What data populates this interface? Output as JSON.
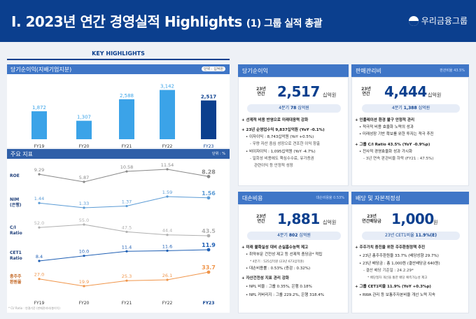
{
  "header": {
    "title": "I. 2023년 연간 경영실적 Highlights",
    "subtitle": "(1) 그룹 실적 총괄",
    "logo": "우리금융그룹"
  },
  "key_highlights": "KEY HIGHLIGHTS",
  "net_income_chart": {
    "title": "당기순이익(지배기업지분)",
    "unit": "단위 : 십억원",
    "chart_data": {
      "type": "bar",
      "categories": [
        "FY19",
        "FY20",
        "FY21",
        "FY22",
        "FY23"
      ],
      "values": [
        1872,
        1307,
        2588,
        3142,
        2517
      ],
      "value_labels": [
        "1,872",
        "1,307",
        "2,588",
        "3,142",
        "2,517"
      ],
      "ylim": [
        0,
        3500
      ]
    }
  },
  "ratios_chart": {
    "title": "주요 지표",
    "unit": "단위 : %",
    "footnote": "* CI/ Ratio : 연결기준 (판매관리비/총이익)",
    "chart_data": {
      "type": "line",
      "categories": [
        "FY19",
        "FY20",
        "FY21",
        "FY22",
        "FY23"
      ],
      "series": [
        {
          "name": "ROE",
          "values": [
            9.29,
            5.87,
            10.58,
            11.54,
            8.28
          ],
          "labels": [
            "9.29",
            "5.87",
            "10.58",
            "11.54",
            "8.28"
          ],
          "color": "#888888"
        },
        {
          "name": "NIM (은행)",
          "values": [
            1.44,
            1.33,
            1.37,
            1.59,
            1.56
          ],
          "labels": [
            "1.44",
            "1.33",
            "1.37",
            "1.59",
            "1.56"
          ],
          "color": "#5b9bd5"
        },
        {
          "name": "C/I Ratio",
          "values": [
            52.0,
            55.0,
            47.5,
            44.4,
            43.5
          ],
          "labels": [
            "52.0",
            "55.0",
            "47.5",
            "44.4",
            "43.5"
          ],
          "color": "#b0b0b0"
        },
        {
          "name": "CET1 Ratio",
          "values": [
            8.4,
            10.0,
            11.4,
            11.6,
            11.9
          ],
          "labels": [
            "8.4",
            "10.0",
            "11.4",
            "11.6",
            "11.9"
          ],
          "color": "#1f5fb4"
        },
        {
          "name": "총주주 환원율",
          "values": [
            27.0,
            19.9,
            25.3,
            26.1,
            33.7
          ],
          "labels": [
            "27.0",
            "19.9",
            "25.3",
            "26.1",
            "33.7"
          ],
          "color": "#f0954a"
        }
      ]
    }
  },
  "net_income": {
    "title": "당기순이익",
    "year": "23년",
    "year2": "연간",
    "value": "2,517",
    "unit": "십억원",
    "q4_label": "4분기",
    "q4_value": "78",
    "q4_unit": "십억원",
    "bullets": [
      "선제적 비용 반영으로 미래대응력 강화",
      "23년 순영업수익 9,837십억원 (YoY -0.1%)",
      "이자이익 : 8,743십억원 (YoY +0.5%)",
      "- 우량 자산 중심 성장으로 견조한 이익 창출",
      "비이자이익 : 1,095십억원 (YoY -4.7%)",
      "- 일회성 비용에도 핵심수수료, 유가증권",
      "관련이익 등 안정적 성장"
    ]
  },
  "sga": {
    "title": "판매관리비",
    "right": "판관비율 43.5%",
    "year": "23년",
    "year2": "연간",
    "value": "4,444",
    "unit": "십억원",
    "q4_label": "4분기",
    "q4_value": "1,388",
    "q4_unit": "십억원",
    "bullets": [
      "인플레이션 환경 불구 안정적 관리",
      "적극적 비용 효율화 노력의 성과",
      "미래성장 기반 확보를 위한 투자는 적극 추진",
      "그룹 C/I Ratio 43.5% (YoY -0.9%p)",
      "전사적 경영효율화 성과 가시화",
      "3년 연속 판관비율 하락 (FY21 : 47.5%)"
    ]
  },
  "provision": {
    "title": "대손비용",
    "right": "대손비용율 0.53%",
    "year": "23년",
    "year2": "연간",
    "value": "1,881",
    "unit": "십억원",
    "q4_label": "4분기",
    "q4_value": "802",
    "q4_unit": "십억원",
    "bullets": [
      "미래 불확실성 대비 손실흡수능력 제고",
      "취약부문 건전성 제고 등 선제적 충당금* 적립",
      "* 4분기 : 525십억원 (23년 673십억원)",
      "대손비용률 : 0.53% (증감 : 0.32%)",
      "자산건전성 지표 관리 강화",
      "NPL 비율 : 그룹 0.35%, 은행 0.18%",
      "NPL 커버리지 : 그룹 229.2%, 은행 318.4%"
    ]
  },
  "dividend": {
    "title": "배당 및 자본적정성",
    "year": "23년",
    "year2": "연간배당금",
    "value": "1,000",
    "unit": "원",
    "cet1_label": "23년 CET1비율",
    "cet1_value": "11.9%(E)",
    "bullets": [
      "주주가치 증진을 위한 주주환원정책 추진",
      "23년 총주주환원율 33.7% (배당성향 29.7%)",
      "23년 배당금 : 총 1,000원 (결산배당금 640원)",
      "- 결산 배당 기준일 : 24.2.29*",
      "* 배당절차 개선을 통한 배당 예측가능성 제고",
      "그룹 CET1비율 11.9% (YoY +0.3%p)",
      "RWA 관리 등 보통주자본비율 개선 노력 지속"
    ]
  }
}
